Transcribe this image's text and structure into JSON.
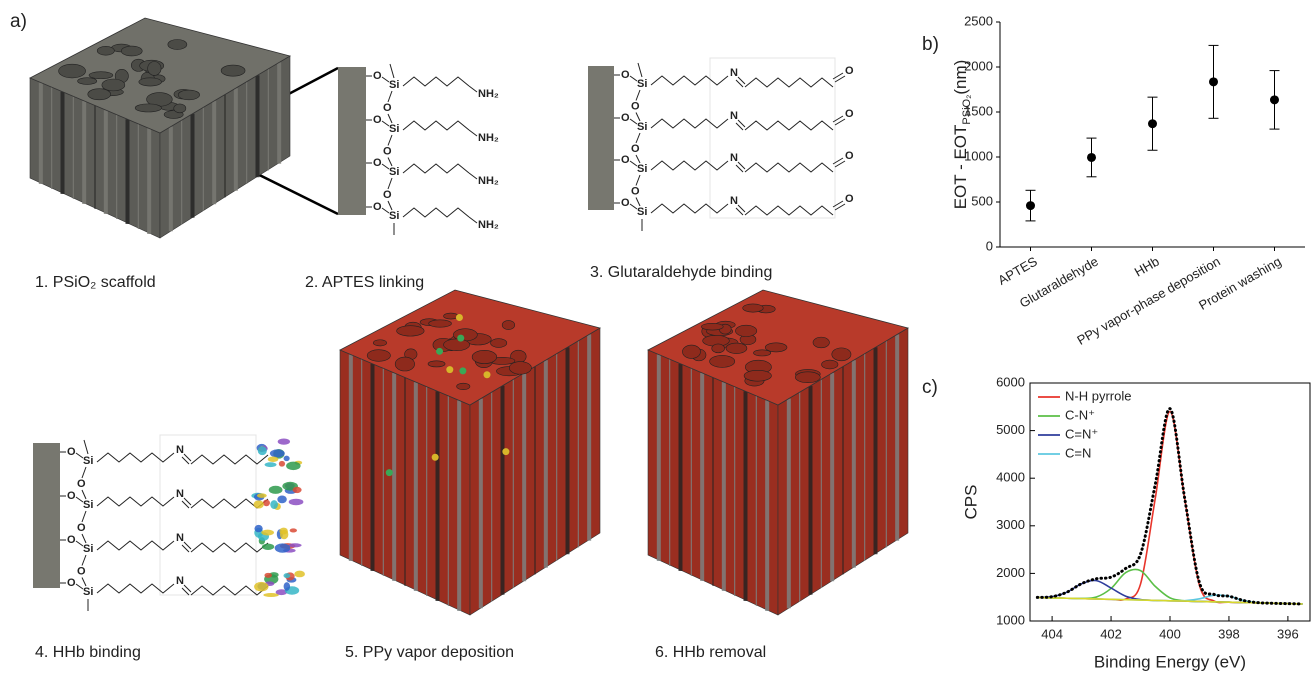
{
  "panel_labels": [
    "a)",
    "b)",
    "c)"
  ],
  "steps": [
    "1.  PSiO₂ scaffold",
    "2. APTES linking",
    "3. Glutaraldehyde binding",
    "4. HHb binding",
    "5.  PPy vapor deposition",
    "6.  HHb removal"
  ],
  "structures": [
    {
      "rows": [
        {
          "o": "O",
          "si": "Si",
          "end": "NH₂"
        },
        {
          "o": "O",
          "si": "Si",
          "end": "NH₂"
        },
        {
          "o": "O",
          "si": "Si",
          "end": "NH₂"
        },
        {
          "o": "O",
          "si": "Si",
          "end": "NH₂"
        }
      ],
      "bridges": [
        "O",
        "O",
        "O"
      ]
    },
    {
      "rows": [
        {
          "o": "O",
          "si": "Si",
          "n": "N",
          "end": "O"
        },
        {
          "o": "O",
          "si": "Si",
          "n": "N",
          "end": "O"
        },
        {
          "o": "O",
          "si": "Si",
          "n": "N",
          "end": "O"
        },
        {
          "o": "O",
          "si": "Si",
          "n": "N",
          "end": "O"
        }
      ],
      "bridges": [
        "O",
        "O",
        "O"
      ]
    },
    {
      "rows": [
        {
          "o": "O",
          "si": "Si",
          "n": "N"
        },
        {
          "o": "O",
          "si": "Si",
          "n": "N"
        },
        {
          "o": "O",
          "si": "Si",
          "n": "N"
        },
        {
          "o": "O",
          "si": "Si",
          "n": "N"
        }
      ],
      "bridges": [
        "O",
        "O",
        "O"
      ]
    }
  ],
  "chart_data": [
    {
      "type": "errorbar",
      "y_label": {
        "text": "EOT - EOT",
        "sub": "PSiO₂",
        "unit": "(nm)"
      },
      "categories": [
        "APTES",
        "Glutaraldehyde",
        "HHb",
        "PPy vapor-phase deposition",
        "Protein washing"
      ],
      "values": [
        460,
        995,
        1370,
        1835,
        1635
      ],
      "errors": [
        170,
        215,
        295,
        405,
        325
      ],
      "color": "#000000",
      "ylim": [
        0,
        2500
      ],
      "yticks": [
        0,
        500,
        1000,
        1500,
        2000,
        2500
      ]
    },
    {
      "type": "line",
      "x_label": "Binding Energy (eV)",
      "y_label": "CPS",
      "x": [
        404.5,
        404,
        403.5,
        403,
        402.5,
        402,
        401.5,
        401,
        400.5,
        400,
        399.5,
        399,
        398.5,
        398,
        397.5,
        397,
        396.5,
        396,
        395.5
      ],
      "series": [
        {
          "name": "N-H pyrrole",
          "color": "#e8352b",
          "values": [
            1493,
            1485,
            1478,
            1470,
            1463,
            1455,
            1464,
            1776,
            3576,
            5400,
            3561,
            1746,
            1419,
            1395,
            1388,
            1380,
            1373,
            1365,
            1358
          ]
        },
        {
          "name": "C-N⁺",
          "color": "#5bbf47",
          "values": [
            1493,
            1485,
            1478,
            1473,
            1503,
            1684,
            2017,
            2058,
            1727,
            1486,
            1423,
            1410,
            1403,
            1395,
            1388,
            1380,
            1373,
            1365,
            1358
          ]
        },
        {
          "name": "C=N⁺",
          "color": "#2e3d9c",
          "values": [
            1496,
            1511,
            1605,
            1782,
            1848,
            1692,
            1521,
            1451,
            1433,
            1425,
            1418,
            1410,
            1403,
            1395,
            1388,
            1380,
            1373,
            1365,
            1358
          ]
        },
        {
          "name": "C=N",
          "color": "#5ec8e0",
          "values": [
            1493,
            1485,
            1478,
            1470,
            1463,
            1455,
            1448,
            1440,
            1433,
            1425,
            1426,
            1466,
            1541,
            1520,
            1430,
            1385,
            1373,
            1365,
            1358
          ]
        },
        {
          "color": "#d8d82c",
          "values": [
            1493,
            1485,
            1478,
            1470,
            1463,
            1455,
            1448,
            1440,
            1433,
            1425,
            1418,
            1410,
            1403,
            1395,
            1388,
            1380,
            1373,
            1365,
            1358
          ]
        },
        {
          "color": "#000000",
          "dash": "dotted",
          "values": [
            1496,
            1511,
            1605,
            1785,
            1888,
            1921,
            2106,
            2405,
            3870,
            5461,
            3574,
            1802,
            1557,
            1520,
            1430,
            1385,
            1373,
            1365,
            1358
          ]
        }
      ],
      "xlim": [
        404.75,
        395.25
      ],
      "xticks": [
        404,
        402,
        400,
        398,
        396
      ],
      "ylim": [
        1000,
        6000
      ],
      "yticks": [
        1000,
        2000,
        3000,
        4000,
        5000,
        6000
      ],
      "legend": "upper left"
    }
  ]
}
